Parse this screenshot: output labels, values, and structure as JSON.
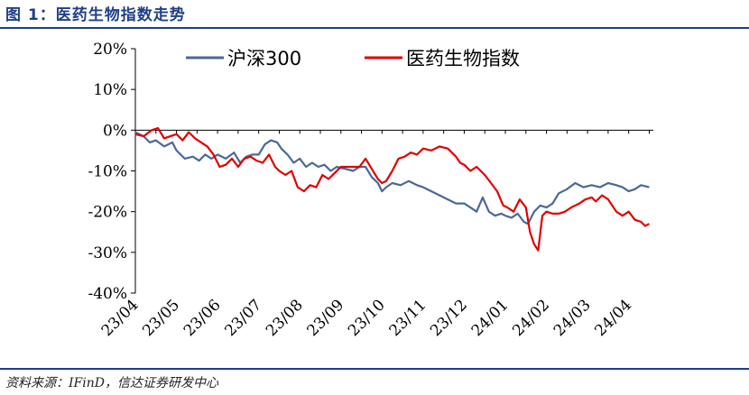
{
  "figure": {
    "title": "图 1：医药生物指数走势",
    "source": "资料来源：IFinD，信达证券研发中心"
  },
  "chart_data": {
    "type": "line",
    "title": "",
    "xlabel": "",
    "ylabel": "",
    "ylim": [
      -0.4,
      0.2
    ],
    "yticks": [
      0.2,
      0.1,
      0.0,
      -0.1,
      -0.2,
      -0.3,
      -0.4
    ],
    "ytick_labels": [
      "20%",
      "10%",
      "0%",
      "-10%",
      "-20%",
      "-30%",
      "-40%"
    ],
    "xlim": [
      0,
      12.6
    ],
    "xticks": [
      0,
      1,
      2,
      3,
      4,
      5,
      6,
      7,
      8,
      9,
      10,
      11,
      12
    ],
    "xtick_labels": [
      "23/04",
      "23/05",
      "23/06",
      "23/07",
      "23/08",
      "23/09",
      "23/10",
      "23/11",
      "23/12",
      "24/01",
      "24/02",
      "24/03",
      "24/04"
    ],
    "grid": false,
    "legend_position": "top",
    "series": [
      {
        "name": "沪深300",
        "color": "#4a6898",
        "x": [
          0,
          0.2,
          0.35,
          0.5,
          0.7,
          0.9,
          1.0,
          1.2,
          1.4,
          1.55,
          1.7,
          1.85,
          2.0,
          2.2,
          2.4,
          2.55,
          2.7,
          2.85,
          3.0,
          3.15,
          3.3,
          3.45,
          3.55,
          3.7,
          3.85,
          4.0,
          4.15,
          4.3,
          4.45,
          4.6,
          4.75,
          4.9,
          5.1,
          5.3,
          5.45,
          5.6,
          5.75,
          5.9,
          6.0,
          6.1,
          6.25,
          6.45,
          6.65,
          6.85,
          7.0,
          7.2,
          7.4,
          7.6,
          7.8,
          8.0,
          8.15,
          8.3,
          8.45,
          8.6,
          8.75,
          8.9,
          9.0,
          9.15,
          9.3,
          9.45,
          9.55,
          9.7,
          9.85,
          10.0,
          10.15,
          10.3,
          10.5,
          10.7,
          10.9,
          11.1,
          11.3,
          11.5,
          11.7,
          11.85,
          12.0,
          12.15,
          12.3,
          12.5
        ],
        "values": [
          -0.005,
          -0.015,
          -0.03,
          -0.025,
          -0.04,
          -0.03,
          -0.05,
          -0.07,
          -0.065,
          -0.075,
          -0.06,
          -0.07,
          -0.06,
          -0.07,
          -0.055,
          -0.08,
          -0.065,
          -0.06,
          -0.06,
          -0.035,
          -0.025,
          -0.03,
          -0.045,
          -0.06,
          -0.08,
          -0.07,
          -0.09,
          -0.08,
          -0.09,
          -0.085,
          -0.1,
          -0.09,
          -0.095,
          -0.1,
          -0.09,
          -0.09,
          -0.115,
          -0.13,
          -0.15,
          -0.14,
          -0.13,
          -0.135,
          -0.125,
          -0.135,
          -0.14,
          -0.15,
          -0.16,
          -0.17,
          -0.18,
          -0.18,
          -0.19,
          -0.2,
          -0.165,
          -0.2,
          -0.21,
          -0.205,
          -0.21,
          -0.215,
          -0.205,
          -0.225,
          -0.23,
          -0.2,
          -0.185,
          -0.19,
          -0.18,
          -0.155,
          -0.145,
          -0.13,
          -0.14,
          -0.135,
          -0.14,
          -0.13,
          -0.135,
          -0.14,
          -0.15,
          -0.145,
          -0.135,
          -0.14
        ]
      },
      {
        "name": "医药生物指数",
        "color": "#e00000",
        "x": [
          0,
          0.2,
          0.4,
          0.55,
          0.7,
          0.85,
          1.0,
          1.15,
          1.3,
          1.45,
          1.6,
          1.75,
          1.9,
          2.05,
          2.2,
          2.35,
          2.5,
          2.65,
          2.8,
          2.95,
          3.1,
          3.25,
          3.4,
          3.5,
          3.65,
          3.8,
          3.95,
          4.1,
          4.25,
          4.4,
          4.55,
          4.7,
          4.85,
          5.0,
          5.15,
          5.3,
          5.45,
          5.6,
          5.75,
          5.9,
          6.0,
          6.1,
          6.25,
          6.4,
          6.55,
          6.7,
          6.85,
          7.0,
          7.2,
          7.4,
          7.6,
          7.8,
          7.9,
          8.0,
          8.15,
          8.3,
          8.5,
          8.65,
          8.8,
          8.95,
          9.05,
          9.2,
          9.35,
          9.5,
          9.6,
          9.7,
          9.8,
          9.9,
          10.0,
          10.15,
          10.3,
          10.45,
          10.6,
          10.8,
          10.95,
          11.1,
          11.2,
          11.35,
          11.5,
          11.7,
          11.85,
          12.0,
          12.15,
          12.3,
          12.4,
          12.5
        ],
        "values": [
          -0.01,
          -0.015,
          0.0,
          0.005,
          -0.02,
          -0.015,
          -0.01,
          -0.025,
          -0.005,
          -0.02,
          -0.03,
          -0.04,
          -0.06,
          -0.09,
          -0.085,
          -0.07,
          -0.09,
          -0.07,
          -0.065,
          -0.075,
          -0.08,
          -0.06,
          -0.09,
          -0.1,
          -0.11,
          -0.1,
          -0.14,
          -0.15,
          -0.135,
          -0.14,
          -0.11,
          -0.12,
          -0.105,
          -0.09,
          -0.09,
          -0.09,
          -0.09,
          -0.07,
          -0.095,
          -0.12,
          -0.13,
          -0.125,
          -0.1,
          -0.07,
          -0.065,
          -0.055,
          -0.06,
          -0.045,
          -0.05,
          -0.04,
          -0.045,
          -0.065,
          -0.08,
          -0.085,
          -0.1,
          -0.09,
          -0.11,
          -0.13,
          -0.15,
          -0.185,
          -0.19,
          -0.2,
          -0.17,
          -0.19,
          -0.25,
          -0.28,
          -0.295,
          -0.21,
          -0.2,
          -0.205,
          -0.205,
          -0.2,
          -0.19,
          -0.18,
          -0.17,
          -0.165,
          -0.175,
          -0.16,
          -0.17,
          -0.2,
          -0.21,
          -0.2,
          -0.22,
          -0.225,
          -0.235,
          -0.23
        ]
      }
    ]
  }
}
